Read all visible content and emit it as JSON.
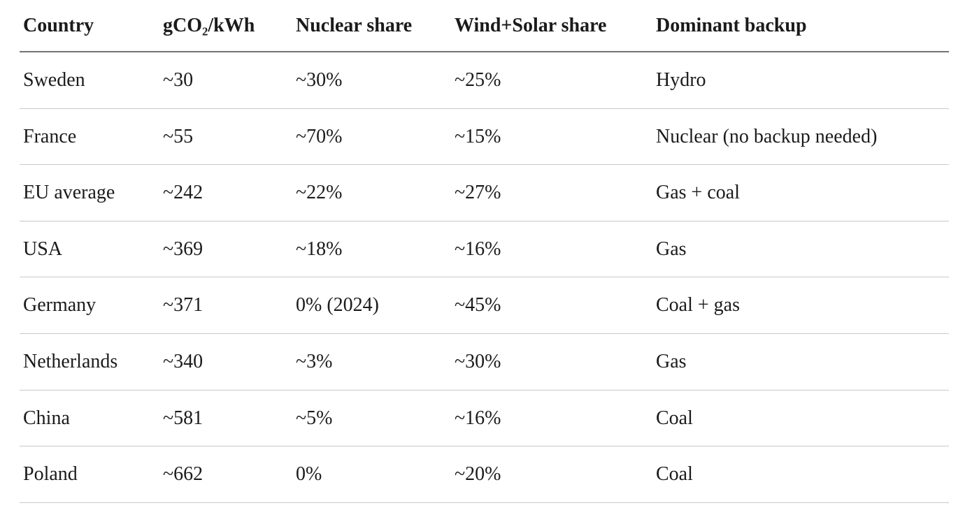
{
  "chart_data": {
    "type": "table",
    "title": "",
    "columns": [
      "Country",
      "gCO₂/kWh",
      "Nuclear share",
      "Wind+Solar share",
      "Dominant backup"
    ],
    "rows": [
      [
        "Sweden",
        "~30",
        "~30%",
        "~25%",
        "Hydro"
      ],
      [
        "France",
        "~55",
        "~70%",
        "~15%",
        "Nuclear (no backup needed)"
      ],
      [
        "EU average",
        "~242",
        "~22%",
        "~27%",
        "Gas + coal"
      ],
      [
        "USA",
        "~369",
        "~18%",
        "~16%",
        "Gas"
      ],
      [
        "Germany",
        "~371",
        "0% (2024)",
        "~45%",
        "Coal + gas"
      ],
      [
        "Netherlands",
        "~340",
        "~3%",
        "~30%",
        "Gas"
      ],
      [
        "China",
        "~581",
        "~5%",
        "~16%",
        "Coal"
      ],
      [
        "Poland",
        "~662",
        "0%",
        "~20%",
        "Coal"
      ]
    ]
  },
  "colors": {
    "background": "#ffffff",
    "text": "#1b1b1b",
    "header_rule": "#737373",
    "row_rule": "#c9c9c9"
  }
}
